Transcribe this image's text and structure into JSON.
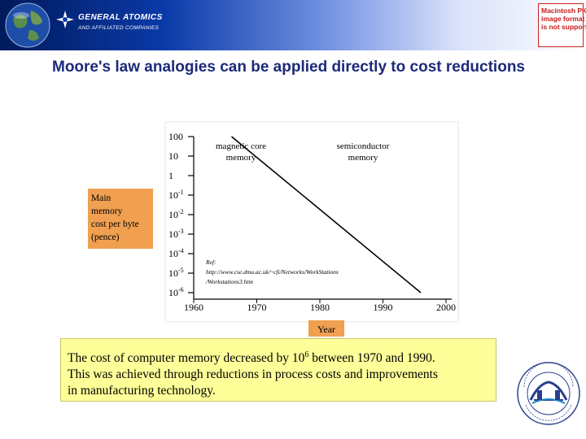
{
  "header": {
    "company_name": "GENERAL ATOMICS",
    "company_tagline": "AND AFFILIATED COMPANIES",
    "pict_placeholder": [
      "Macintosh PICT",
      "image format",
      "is not supported"
    ],
    "colors": {
      "banner_dark": "#001a5c",
      "banner_light": "#ffffff",
      "placeholder_red": "#c81a1a"
    }
  },
  "slide": {
    "title": "Moore's law analogies can be applied directly to cost reductions",
    "title_color": "#1c2a7a"
  },
  "chart_data": {
    "type": "line",
    "ylabel": [
      "Main",
      "memory",
      "cost per byte",
      "(pence)"
    ],
    "xlabel": "Year",
    "x_tick_labels": [
      "1960",
      "1970",
      "1980",
      "1990",
      "2000"
    ],
    "y_tick_labels": [
      {
        "base": "100",
        "exp": ""
      },
      {
        "base": "10",
        "exp": ""
      },
      {
        "base": "1",
        "exp": ""
      },
      {
        "base": "10",
        "exp": "-1"
      },
      {
        "base": "10",
        "exp": "-2"
      },
      {
        "base": "10",
        "exp": "-3"
      },
      {
        "base": "10",
        "exp": "-4"
      },
      {
        "base": "10",
        "exp": "-5"
      },
      {
        "base": "10",
        "exp": "-6"
      }
    ],
    "y_scale": "log",
    "xlim": [
      1960,
      2000
    ],
    "ylim": [
      1e-06,
      100
    ],
    "series": [
      {
        "x": [
          1966,
          1996
        ],
        "y": [
          100,
          1e-06
        ],
        "color": "#000000"
      }
    ],
    "annotations": {
      "region_left": [
        "magnetic core",
        "memory"
      ],
      "region_right": [
        "semiconductor",
        "memory"
      ],
      "reference": [
        "Ref:",
        "http://www.cse.dmu.ac.uk/~cfi/Networks/WorkStations",
        "/Workstations3.htm"
      ]
    },
    "colors": {
      "label_box": "#f0a050",
      "axis": "#000000"
    },
    "grid": false
  },
  "caption": {
    "lines": [
      {
        "pre": "The cost of computer memory decreased by 10",
        "sup": "6",
        "post": " between 1970 and 1990."
      },
      {
        "pre": "This was achieved through reductions in process costs and improvements",
        "sup": "",
        "post": ""
      },
      {
        "pre": "in manufacturing technology.",
        "sup": "",
        "post": ""
      }
    ],
    "background": "#ffff99"
  },
  "footer_logo": {
    "icon": "laboratory-seal-icon"
  }
}
